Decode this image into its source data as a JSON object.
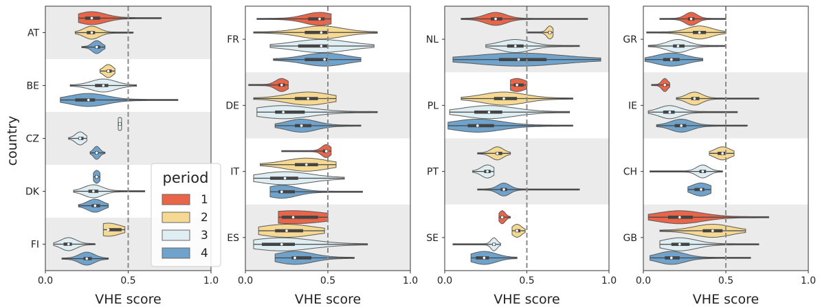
{
  "chart_data": {
    "type": "violin",
    "ylabel": "country",
    "legend": {
      "title": "period",
      "placement": "bottom-right of first panel",
      "entries": [
        {
          "label": "1",
          "color": "#e8654a"
        },
        {
          "label": "2",
          "color": "#f5d992"
        },
        {
          "label": "3",
          "color": "#dfeef3"
        },
        {
          "label": "4",
          "color": "#6fa3cc"
        }
      ]
    },
    "reference_line": 0.5,
    "panels": [
      {
        "xlabel": "VHE score",
        "xlim": [
          0,
          1
        ],
        "xticks": [
          "0.0",
          "0.5",
          "1.0"
        ],
        "countries": [
          {
            "label": "AT",
            "shaded": true,
            "violins": [
              {
                "period": 1,
                "median": 0.28,
                "q1": 0.24,
                "q3": 0.33,
                "min": 0.2,
                "max": 0.7
              },
              {
                "period": 2,
                "median": 0.28,
                "q1": 0.25,
                "q3": 0.3,
                "min": 0.18,
                "max": 0.53
              },
              {
                "period": 4,
                "median": 0.31,
                "q1": 0.3,
                "q3": 0.33,
                "min": 0.22,
                "max": 0.36
              }
            ]
          },
          {
            "label": "BE",
            "shaded": false,
            "violins": [
              {
                "period": 2,
                "median": 0.38,
                "q1": 0.37,
                "q3": 0.4,
                "min": 0.33,
                "max": 0.42
              },
              {
                "period": 3,
                "median": 0.35,
                "q1": 0.3,
                "q3": 0.38,
                "min": 0.15,
                "max": 0.55
              },
              {
                "period": 4,
                "median": 0.26,
                "q1": 0.18,
                "q3": 0.3,
                "min": 0.09,
                "max": 0.8
              }
            ]
          },
          {
            "label": "CZ",
            "shaded": true,
            "violins": [
              {
                "period": 3,
                "median": 0.45,
                "q1": 0.44,
                "q3": 0.46,
                "min": 0.44,
                "max": 0.46
              },
              {
                "period": 3,
                "median": 0.21,
                "q1": 0.2,
                "q3": 0.23,
                "min": 0.14,
                "max": 0.25
              },
              {
                "period": 4,
                "median": 0.31,
                "q1": 0.3,
                "q3": 0.32,
                "min": 0.27,
                "max": 0.36
              }
            ]
          },
          {
            "label": "DK",
            "shaded": false,
            "violins": [
              {
                "period": 4,
                "median": 0.31,
                "q1": 0.3,
                "q3": 0.32,
                "min": 0.29,
                "max": 0.33
              },
              {
                "period": 3,
                "median": 0.29,
                "q1": 0.26,
                "q3": 0.32,
                "min": 0.17,
                "max": 0.6
              },
              {
                "period": 4,
                "median": 0.3,
                "q1": 0.28,
                "q3": 0.33,
                "min": 0.2,
                "max": 0.38
              }
            ]
          },
          {
            "label": "FI",
            "shaded": true,
            "violins": [
              {
                "period": 2,
                "median": 0.38,
                "q1": 0.38,
                "q3": 0.46,
                "min": 0.35,
                "max": 0.48
              },
              {
                "period": 3,
                "median": 0.14,
                "q1": 0.11,
                "q3": 0.16,
                "min": 0.05,
                "max": 0.3
              },
              {
                "period": 4,
                "median": 0.25,
                "q1": 0.23,
                "q3": 0.28,
                "min": 0.1,
                "max": 0.38
              }
            ]
          }
        ]
      },
      {
        "xlabel": "VHE score",
        "xlim": [
          0,
          1
        ],
        "xticks": [
          "0.0",
          "0.5",
          "1.0"
        ],
        "countries": [
          {
            "label": "FR",
            "shaded": false,
            "violins": [
              {
                "period": 1,
                "median": 0.45,
                "q1": 0.38,
                "q3": 0.48,
                "min": 0.07,
                "max": 0.52
              },
              {
                "period": 2,
                "median": 0.46,
                "q1": 0.36,
                "q3": 0.5,
                "min": 0.05,
                "max": 0.8
              },
              {
                "period": 3,
                "median": 0.46,
                "q1": 0.32,
                "q3": 0.5,
                "min": 0.15,
                "max": 0.78
              },
              {
                "period": 4,
                "median": 0.48,
                "q1": 0.36,
                "q3": 0.5,
                "min": 0.17,
                "max": 0.7
              }
            ]
          },
          {
            "label": "DE",
            "shaded": true,
            "violins": [
              {
                "period": 1,
                "median": 0.22,
                "q1": 0.2,
                "q3": 0.24,
                "min": 0.02,
                "max": 0.26
              },
              {
                "period": 2,
                "median": 0.38,
                "q1": 0.3,
                "q3": 0.44,
                "min": 0.05,
                "max": 0.55
              },
              {
                "period": 3,
                "median": 0.23,
                "q1": 0.18,
                "q3": 0.36,
                "min": 0.07,
                "max": 0.8
              },
              {
                "period": 4,
                "median": 0.34,
                "q1": 0.3,
                "q3": 0.4,
                "min": 0.18,
                "max": 0.7
              }
            ]
          },
          {
            "label": "IT",
            "shaded": false,
            "violins": [
              {
                "period": 1,
                "median": 0.49,
                "q1": 0.47,
                "q3": 0.5,
                "min": 0.22,
                "max": 0.52
              },
              {
                "period": 2,
                "median": 0.37,
                "q1": 0.3,
                "q3": 0.44,
                "min": 0.09,
                "max": 0.55
              },
              {
                "period": 3,
                "median": 0.24,
                "q1": 0.15,
                "q3": 0.32,
                "min": 0.05,
                "max": 0.6
              },
              {
                "period": 4,
                "median": 0.22,
                "q1": 0.2,
                "q3": 0.3,
                "min": 0.15,
                "max": 0.71
              }
            ]
          },
          {
            "label": "ES",
            "shaded": true,
            "violins": [
              {
                "period": 1,
                "median": 0.29,
                "q1": 0.22,
                "q3": 0.44,
                "min": 0.2,
                "max": 0.5
              },
              {
                "period": 2,
                "median": 0.25,
                "q1": 0.18,
                "q3": 0.35,
                "min": 0.08,
                "max": 0.48
              },
              {
                "period": 3,
                "median": 0.22,
                "q1": 0.1,
                "q3": 0.3,
                "min": 0.05,
                "max": 0.74
              },
              {
                "period": 4,
                "median": 0.3,
                "q1": 0.28,
                "q3": 0.4,
                "min": 0.18,
                "max": 0.66
              }
            ]
          }
        ]
      },
      {
        "xlabel": "VHE score",
        "xlim": [
          0,
          1
        ],
        "xticks": [
          "0.0",
          "0.5",
          "1.0"
        ],
        "countries": [
          {
            "label": "NL",
            "shaded": true,
            "violins": [
              {
                "period": 1,
                "median": 0.31,
                "q1": 0.28,
                "q3": 0.35,
                "min": 0.1,
                "max": 0.87
              },
              {
                "period": 2,
                "median": 0.64,
                "q1": 0.63,
                "q3": 0.65,
                "min": 0.5,
                "max": 0.66
              },
              {
                "period": 3,
                "median": 0.43,
                "q1": 0.38,
                "q3": 0.48,
                "min": 0.25,
                "max": 0.82
              },
              {
                "period": 4,
                "median": 0.45,
                "q1": 0.33,
                "q3": 0.62,
                "min": 0.05,
                "max": 0.95
              }
            ]
          },
          {
            "label": "PL",
            "shaded": false,
            "violins": [
              {
                "period": 1,
                "median": 0.44,
                "q1": 0.42,
                "q3": 0.48,
                "min": 0.4,
                "max": 0.5
              },
              {
                "period": 2,
                "median": 0.36,
                "q1": 0.3,
                "q3": 0.44,
                "min": 0.1,
                "max": 0.78
              },
              {
                "period": 3,
                "median": 0.27,
                "q1": 0.18,
                "q3": 0.35,
                "min": 0.03,
                "max": 0.76
              },
              {
                "period": 4,
                "median": 0.2,
                "q1": 0.14,
                "q3": 0.3,
                "min": 0.02,
                "max": 0.78
              }
            ]
          },
          {
            "label": "PT",
            "shaded": true,
            "violins": [
              {
                "period": 2,
                "median": 0.32,
                "q1": 0.31,
                "q3": 0.35,
                "min": 0.2,
                "max": 0.4
              },
              {
                "period": 3,
                "median": 0.26,
                "q1": 0.24,
                "q3": 0.28,
                "min": 0.17,
                "max": 0.3
              },
              {
                "period": 4,
                "median": 0.36,
                "q1": 0.34,
                "q3": 0.38,
                "min": 0.2,
                "max": 0.82
              }
            ]
          },
          {
            "label": "SE",
            "shaded": false,
            "violins": [
              {
                "period": 1,
                "median": 0.35,
                "q1": 0.34,
                "q3": 0.36,
                "min": 0.33,
                "max": 0.4
              },
              {
                "period": 2,
                "median": 0.44,
                "q1": 0.43,
                "q3": 0.46,
                "min": 0.41,
                "max": 0.49
              },
              {
                "period": 3,
                "median": 0.3,
                "q1": 0.29,
                "q3": 0.31,
                "min": 0.05,
                "max": 0.34
              },
              {
                "period": 4,
                "median": 0.24,
                "q1": 0.19,
                "q3": 0.27,
                "min": 0.16,
                "max": 0.44
              }
            ]
          }
        ]
      },
      {
        "xlabel": "VHE score",
        "xlim": [
          0,
          1
        ],
        "xticks": [
          "0.0",
          "0.5",
          "1.0"
        ],
        "countries": [
          {
            "label": "GR",
            "shaded": false,
            "violins": [
              {
                "period": 1,
                "median": 0.29,
                "q1": 0.27,
                "q3": 0.31,
                "min": 0.1,
                "max": 0.5
              },
              {
                "period": 2,
                "median": 0.34,
                "q1": 0.3,
                "q3": 0.38,
                "min": 0.02,
                "max": 0.5
              },
              {
                "period": 3,
                "median": 0.21,
                "q1": 0.18,
                "q3": 0.25,
                "min": 0.03,
                "max": 0.5
              },
              {
                "period": 4,
                "median": 0.17,
                "q1": 0.12,
                "q3": 0.22,
                "min": 0.01,
                "max": 0.36
              }
            ]
          },
          {
            "label": "IE",
            "shaded": true,
            "violins": [
              {
                "period": 1,
                "median": 0.13,
                "q1": 0.12,
                "q3": 0.14,
                "min": 0.05,
                "max": 0.16
              },
              {
                "period": 2,
                "median": 0.31,
                "q1": 0.29,
                "q3": 0.34,
                "min": 0.2,
                "max": 0.7
              },
              {
                "period": 3,
                "median": 0.16,
                "q1": 0.12,
                "q3": 0.19,
                "min": 0.03,
                "max": 0.57
              },
              {
                "period": 4,
                "median": 0.23,
                "q1": 0.19,
                "q3": 0.26,
                "min": 0.08,
                "max": 0.63
              }
            ]
          },
          {
            "label": "CH",
            "shaded": false,
            "violins": [
              {
                "period": 2,
                "median": 0.48,
                "q1": 0.45,
                "q3": 0.5,
                "min": 0.4,
                "max": 0.55
              },
              {
                "period": 3,
                "median": 0.36,
                "q1": 0.34,
                "q3": 0.38,
                "min": 0.04,
                "max": 0.48
              },
              {
                "period": 4,
                "median": 0.35,
                "q1": 0.31,
                "q3": 0.37,
                "min": 0.27,
                "max": 0.41
              }
            ]
          },
          {
            "label": "GB",
            "shaded": true,
            "violins": [
              {
                "period": 1,
                "median": 0.22,
                "q1": 0.15,
                "q3": 0.3,
                "min": 0.03,
                "max": 0.76
              },
              {
                "period": 2,
                "median": 0.42,
                "q1": 0.36,
                "q3": 0.48,
                "min": 0.1,
                "max": 0.62
              },
              {
                "period": 3,
                "median": 0.22,
                "q1": 0.17,
                "q3": 0.28,
                "min": 0.1,
                "max": 0.7
              },
              {
                "period": 4,
                "median": 0.17,
                "q1": 0.13,
                "q3": 0.22,
                "min": 0.04,
                "max": 0.65
              }
            ]
          }
        ]
      }
    ]
  }
}
